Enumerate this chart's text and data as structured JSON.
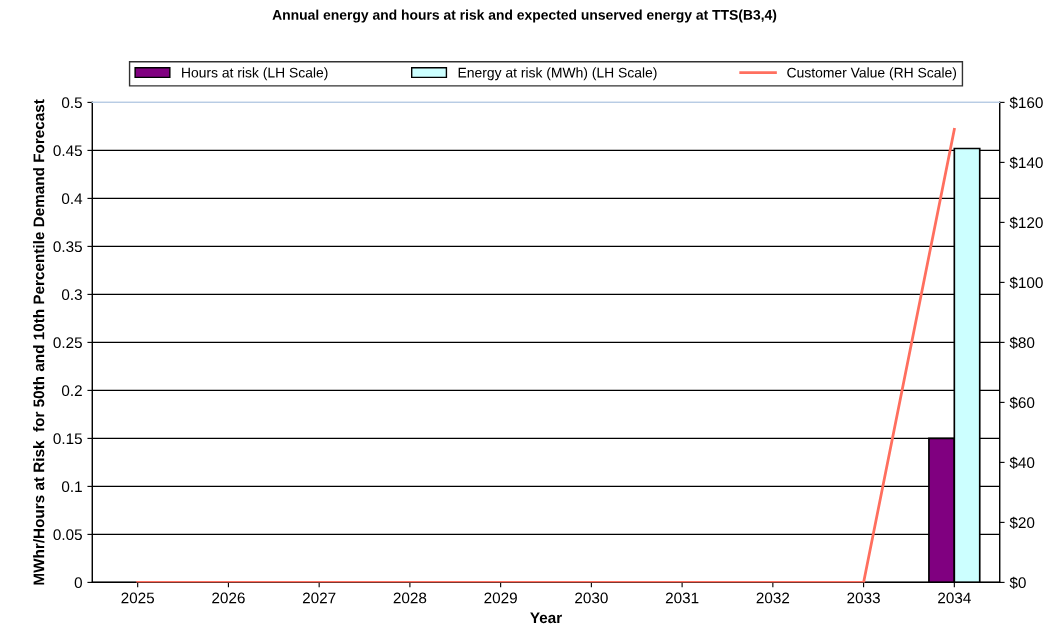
{
  "chart_data": {
    "type": "bar",
    "title": "Annual energy and hours at risk and expected unserved energy at TTS(B3,4)",
    "xlabel": "Year",
    "ylabel": "MWhr/Hours at Risk  for 50th and 10th Percentile Demand Forecast",
    "categories": [
      "2025",
      "2026",
      "2027",
      "2028",
      "2029",
      "2030",
      "2031",
      "2032",
      "2033",
      "2034"
    ],
    "series": [
      {
        "name": "Hours at risk (LH Scale)",
        "color": "#800080",
        "values": [
          null,
          null,
          null,
          null,
          null,
          null,
          null,
          null,
          null,
          0.15
        ]
      },
      {
        "name": "Energy at risk (MWh) (LH Scale)",
        "color": "#ccffff",
        "values": [
          null,
          null,
          null,
          null,
          null,
          null,
          null,
          null,
          null,
          0.452
        ]
      },
      {
        "name": "Customer Value (RH Scale)",
        "type": "line",
        "axis": "y2",
        "color": "#ff6f5f",
        "values": [
          0,
          0,
          0,
          0,
          0,
          0,
          0,
          0,
          0,
          151
        ]
      }
    ],
    "ylim": [
      0,
      0.5
    ],
    "yticks": [
      0,
      0.05,
      0.1,
      0.15,
      0.2,
      0.25,
      0.3,
      0.35,
      0.4,
      0.45,
      0.5
    ],
    "y2lim": [
      0,
      160
    ],
    "y2ticks": [
      {
        "value": 0,
        "label": "$0"
      },
      {
        "value": 20,
        "label": "$20"
      },
      {
        "value": 40,
        "label": "$40"
      },
      {
        "value": 60,
        "label": "$60"
      },
      {
        "value": 80,
        "label": "$80"
      },
      {
        "value": 100,
        "label": "$100"
      },
      {
        "value": 120,
        "label": "$120"
      },
      {
        "value": 140,
        "label": "$140"
      },
      {
        "value": 160,
        "label": "$160"
      }
    ],
    "grid": "y",
    "legend": "top"
  }
}
